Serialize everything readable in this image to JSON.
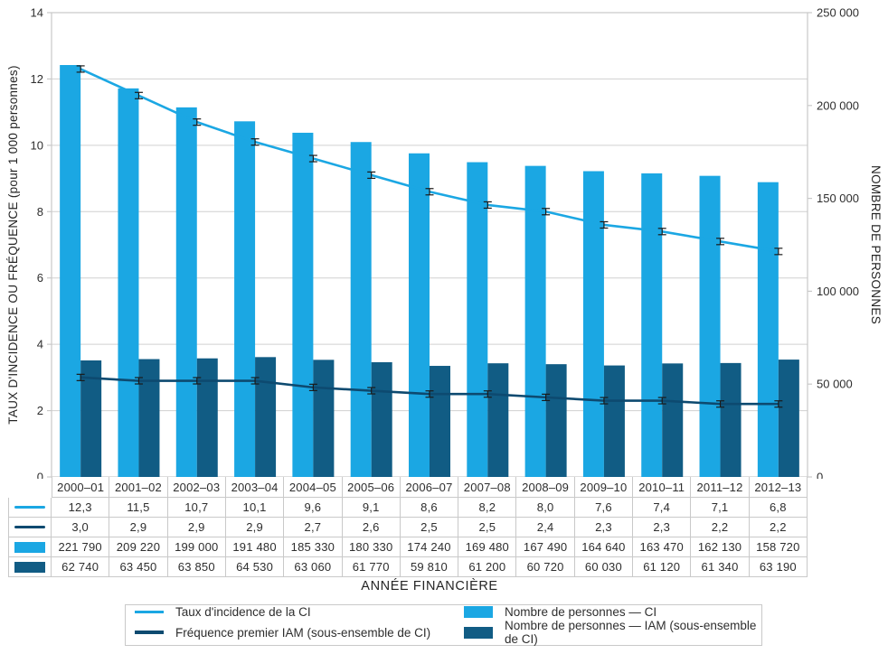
{
  "chart_data": {
    "type": "bar",
    "subtype": "grouped-bar-and-line-combo",
    "title": "",
    "xlabel": "ANNÉE FINANCIÈRE",
    "grid": "horizontal",
    "error_bars": true,
    "legend_position": "bottom",
    "categories": [
      "2000–01",
      "2001–02",
      "2002–03",
      "2003–04",
      "2004–05",
      "2005–06",
      "2006–07",
      "2007–08",
      "2008–09",
      "2009–10",
      "2010–11",
      "2011–12",
      "2012–13"
    ],
    "left_axis": {
      "label": "TAUX D'INCIDENCE OU FRÉQUENCE (pour 1 000 personnes)",
      "min": 0,
      "max": 14,
      "tick_values": [
        0,
        2,
        4,
        6,
        8,
        10,
        12,
        14
      ],
      "tick_labels": [
        "0",
        "2",
        "4",
        "6",
        "8",
        "10",
        "12",
        "14"
      ],
      "grid_values": [
        2,
        4,
        6,
        8,
        10,
        12
      ]
    },
    "right_axis": {
      "label": "NOMBRE DE PERSONNES",
      "min": 0,
      "max": 250000,
      "tick_values": [
        0,
        50000,
        100000,
        150000,
        200000,
        250000
      ],
      "tick_labels": [
        "0",
        "50 000",
        "100 000",
        "150 000",
        "200 000",
        "250 000"
      ]
    },
    "series": [
      {
        "name": "Taux d'incidence de la CI",
        "kind": "line",
        "axis": "left",
        "color": "#1ba7e3",
        "values": [
          12.3,
          11.5,
          10.7,
          10.1,
          9.6,
          9.1,
          8.6,
          8.2,
          8.0,
          7.6,
          7.4,
          7.1,
          6.8
        ],
        "display": [
          "12,3",
          "11,5",
          "10,7",
          "10,1",
          "9,6",
          "9,1",
          "8,6",
          "8,2",
          "8,0",
          "7,6",
          "7,4",
          "7,1",
          "6,8"
        ]
      },
      {
        "name": "Fréquence premier IAM (sous-ensemble de CI)",
        "kind": "line",
        "axis": "left",
        "color": "#0d4a70",
        "values": [
          3.0,
          2.9,
          2.9,
          2.9,
          2.7,
          2.6,
          2.5,
          2.5,
          2.4,
          2.3,
          2.3,
          2.2,
          2.2
        ],
        "display": [
          "3,0",
          "2,9",
          "2,9",
          "2,9",
          "2,7",
          "2,6",
          "2,5",
          "2,5",
          "2,4",
          "2,3",
          "2,3",
          "2,2",
          "2,2"
        ]
      },
      {
        "name": "Nombre de personnes — CI",
        "kind": "bar",
        "axis": "right",
        "color": "#1ba7e3",
        "values": [
          221790,
          209220,
          199000,
          191480,
          185330,
          180330,
          174240,
          169480,
          167490,
          164640,
          163470,
          162130,
          158720
        ],
        "display": [
          "221 790",
          "209 220",
          "199 000",
          "191 480",
          "185 330",
          "180 330",
          "174 240",
          "169 480",
          "167 490",
          "164 640",
          "163 470",
          "162 130",
          "158 720"
        ]
      },
      {
        "name": "Nombre de personnes — IAM (sous-ensemble de CI)",
        "kind": "bar",
        "axis": "right",
        "color": "#115c84",
        "values": [
          62740,
          63450,
          63850,
          64530,
          63060,
          61770,
          59810,
          61200,
          60720,
          60030,
          61120,
          61340,
          63190
        ],
        "display": [
          "62 740",
          "63 450",
          "63 850",
          "64 530",
          "63 060",
          "61 770",
          "59 810",
          "61 200",
          "60 720",
          "60 030",
          "61 120",
          "61 340",
          "63 190"
        ]
      }
    ],
    "colors": {
      "light_blue": "#1ba7e3",
      "dark_bar_blue": "#115c84",
      "dark_line_blue": "#0d4a70",
      "grid_gray": "#d0d0d0",
      "border_gray": "#c9c9c9",
      "error_bar_black": "#1a1a1a",
      "text": "#2e2e2e"
    }
  }
}
